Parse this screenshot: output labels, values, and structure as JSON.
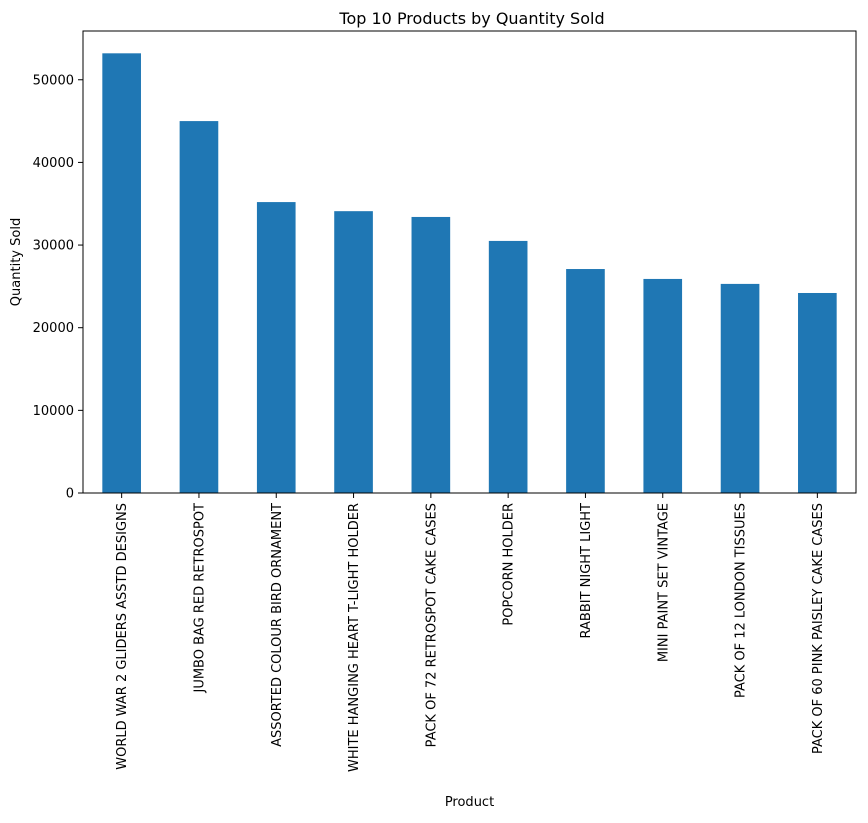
{
  "chart_data": {
    "type": "bar",
    "title": "Top 10 Products by Quantity Sold",
    "xlabel": "Product",
    "ylabel": "Quantity Sold",
    "categories": [
      "WORLD WAR 2 GLIDERS ASSTD DESIGNS",
      "JUMBO BAG RED RETROSPOT",
      "ASSORTED COLOUR BIRD ORNAMENT",
      "WHITE HANGING HEART T-LIGHT HOLDER",
      "PACK OF 72 RETROSPOT CAKE CASES",
      "POPCORN HOLDER",
      "RABBIT NIGHT LIGHT",
      "MINI PAINT SET VINTAGE",
      "PACK OF 12 LONDON TISSUES",
      "PACK OF 60 PINK PAISLEY CAKE CASES"
    ],
    "values": [
      53200,
      45000,
      35200,
      34100,
      33400,
      30500,
      27100,
      25900,
      25300,
      24200
    ],
    "ylim": [
      0,
      55900
    ],
    "yticks": [
      0,
      10000,
      20000,
      30000,
      40000,
      50000
    ],
    "ytick_labels": [
      "0",
      "10000",
      "20000",
      "30000",
      "40000",
      "50000"
    ],
    "grid": false,
    "bar_color": "#1f77b4"
  }
}
